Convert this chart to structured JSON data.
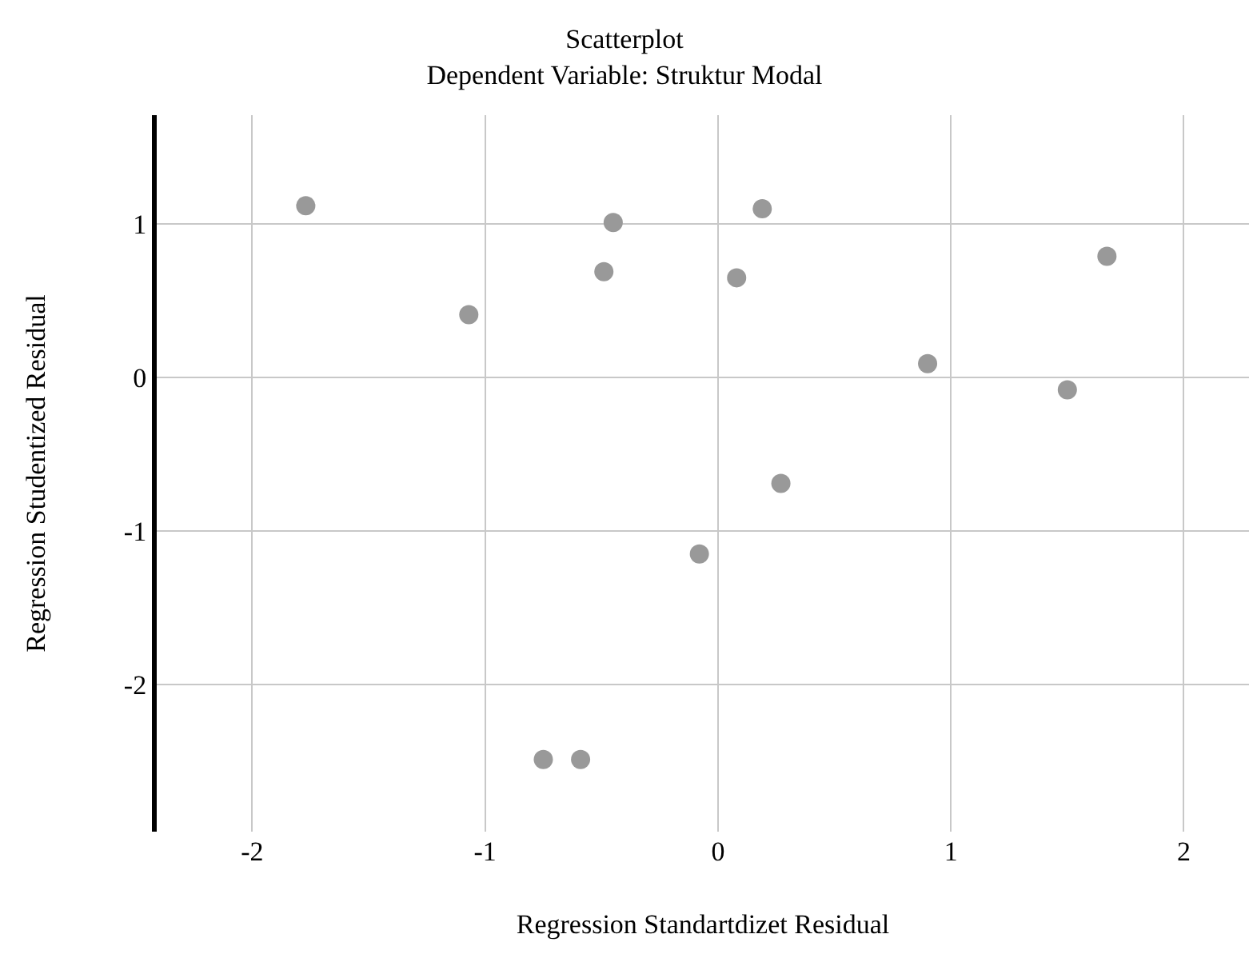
{
  "chart_data": {
    "type": "scatter",
    "title": "Scatterplot",
    "subtitle": "Dependent Variable: Struktur Modal",
    "xlabel": "Regression Standartdizet Residual",
    "ylabel": "Regression Studentized Residual",
    "x": [
      -1.77,
      -1.07,
      -0.45,
      -0.49,
      0.19,
      0.08,
      0.9,
      1.5,
      1.67,
      0.27,
      -0.08,
      -0.75,
      -0.59
    ],
    "values": [
      1.12,
      0.41,
      1.01,
      0.69,
      1.1,
      0.65,
      0.09,
      -0.08,
      0.79,
      -0.69,
      -1.15,
      -2.49,
      -2.49
    ],
    "color": "#999999",
    "marker": "circle",
    "grid": true,
    "xlim": [
      -2.41,
      2.28
    ],
    "xticks": [
      -2,
      -1,
      0,
      1,
      2
    ],
    "ylim": [
      -2.96,
      1.71
    ],
    "yticks": [
      1,
      0,
      -1,
      -2
    ]
  }
}
